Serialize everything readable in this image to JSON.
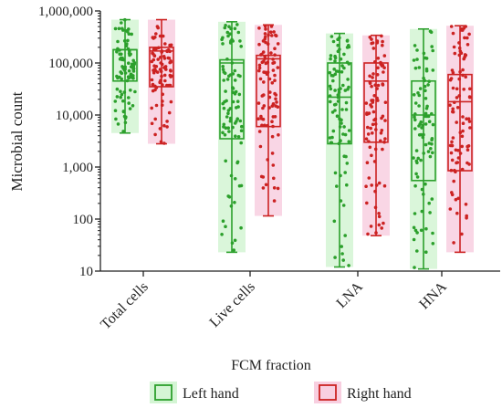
{
  "chart_data": {
    "type": "box",
    "xlabel": "FCM fraction",
    "ylabel": "Microbial count",
    "yscale": "log",
    "ylim": [
      10,
      1000000
    ],
    "yticks": [
      {
        "value": 10,
        "label": "10"
      },
      {
        "value": 100,
        "label": "100"
      },
      {
        "value": 1000,
        "label": "1,000"
      },
      {
        "value": 10000,
        "label": "10,000"
      },
      {
        "value": 100000,
        "label": "100,000"
      },
      {
        "value": 1000000,
        "label": "1,000,000"
      }
    ],
    "categories": [
      "Total cells",
      "Live cells",
      "LNA",
      "HNA"
    ],
    "legend_position": "bottom",
    "series": [
      {
        "name": "Left hand",
        "color": "#2ca02c",
        "fill": "#d4f5d4",
        "boxes": [
          {
            "min": 4500,
            "q1": 45000,
            "median": 180000,
            "q3": 180000,
            "max": 680000
          },
          {
            "min": 23,
            "q1": 3500,
            "median": 100000,
            "q3": 115000,
            "max": 620000
          },
          {
            "min": 12,
            "q1": 2800,
            "median": 22000,
            "q3": 100000,
            "max": 370000
          },
          {
            "min": 11,
            "q1": 550,
            "median": 10000,
            "q3": 45000,
            "max": 450000
          }
        ]
      },
      {
        "name": "Right hand",
        "color": "#cc2222",
        "fill": "#f8cfe0",
        "boxes": [
          {
            "min": 2800,
            "q1": 35000,
            "median": 170000,
            "q3": 200000,
            "max": 680000
          },
          {
            "min": 115,
            "q1": 6000,
            "median": 120000,
            "q3": 140000,
            "max": 540000
          },
          {
            "min": 48,
            "q1": 3000,
            "median": 45000,
            "q3": 100000,
            "max": 340000
          },
          {
            "min": 23,
            "q1": 850,
            "median": 18000,
            "q3": 60000,
            "max": 520000
          }
        ]
      }
    ]
  }
}
